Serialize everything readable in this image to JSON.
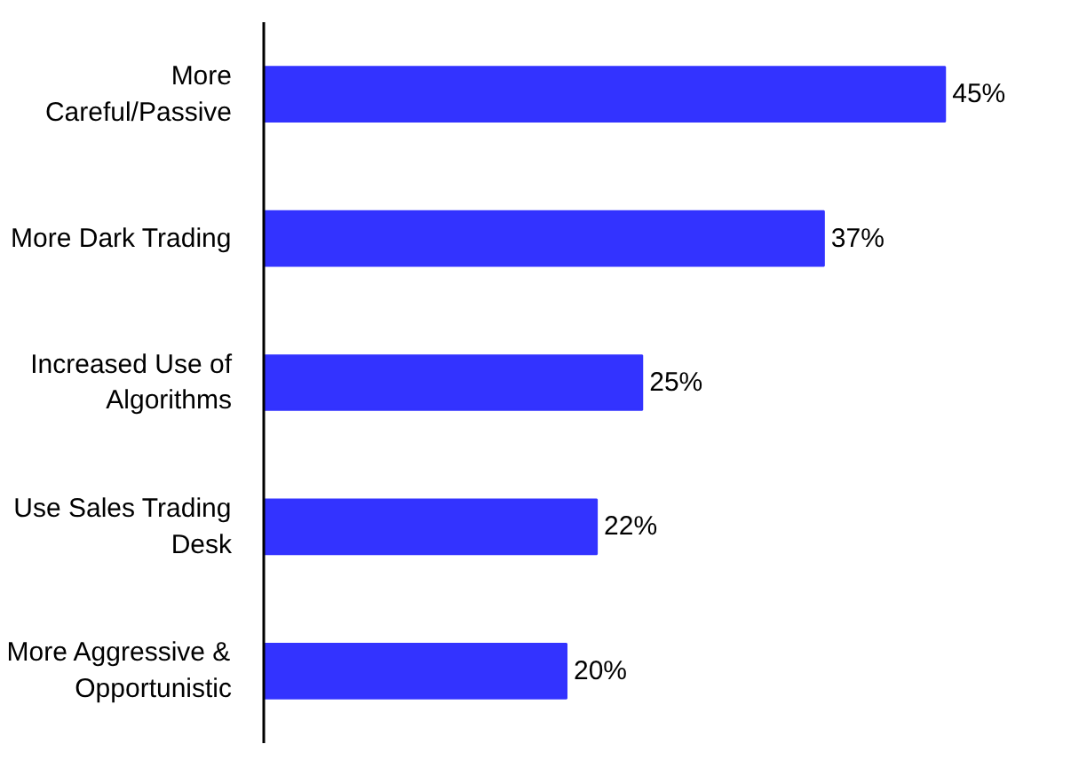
{
  "chart_data": {
    "type": "bar",
    "orientation": "horizontal",
    "categories": [
      "More Careful/Passive",
      "More Dark Trading",
      "Increased Use of Algorithms",
      "Use Sales Trading Desk",
      "More Aggressive & Opportunistic"
    ],
    "values": [
      45,
      37,
      25,
      22,
      20
    ],
    "value_labels": [
      "45%",
      "37%",
      "25%",
      "22%",
      "20%"
    ],
    "color": "#3333ff",
    "grid": false
  }
}
